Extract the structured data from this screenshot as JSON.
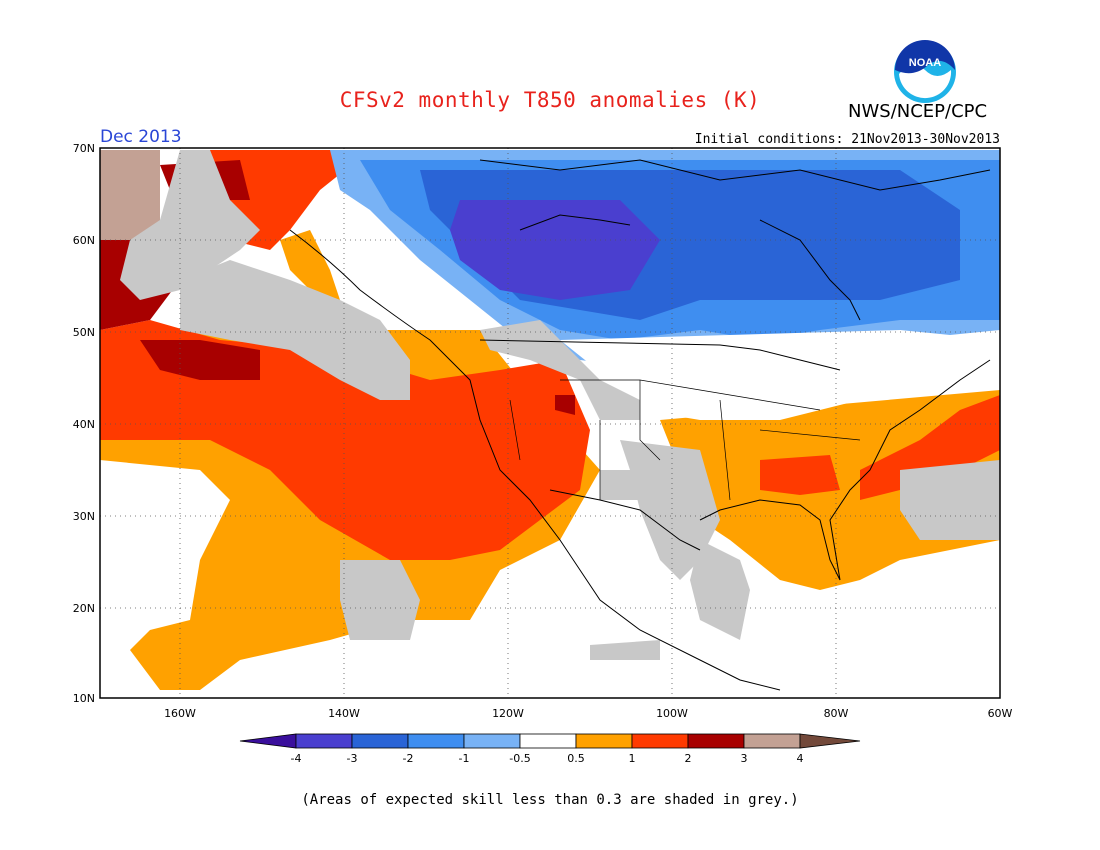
{
  "header": {
    "title": "CFSv2 monthly T850 anomalies (K)",
    "organization": "NWS/NCEP/CPC",
    "logo_text": "NOAA",
    "period": "Dec 2013",
    "initial_conditions": "Initial conditions: 21Nov2013-30Nov2013"
  },
  "map": {
    "lat_labels": [
      "70N",
      "60N",
      "50N",
      "40N",
      "30N",
      "20N",
      "10N"
    ],
    "lon_labels": [
      "160W",
      "140W",
      "120W",
      "100W",
      "80W",
      "60W"
    ]
  },
  "colorbar": {
    "labels": [
      "-4",
      "-3",
      "-2",
      "-1",
      "-0.5",
      "0.5",
      "1",
      "2",
      "3",
      "4"
    ],
    "colors": {
      "below_-4": "#3a0f9c",
      "-4_-3": "#4a3fcf",
      "-3_-2": "#2a64d6",
      "-2_-1": "#3f8ef0",
      "-1_-0.5": "#78b2f5",
      "-0.5_0.5": "#ffffff",
      "0.5_1": "#ffa100",
      "1_2": "#ff3a00",
      "2_3": "#a80000",
      "3_4": "#c3a194",
      "above_4": "#73493a"
    }
  },
  "skill_shading_color": "#c8c8c8",
  "footnote": "(Areas of expected skill less than 0.3 are shaded in grey.)"
}
